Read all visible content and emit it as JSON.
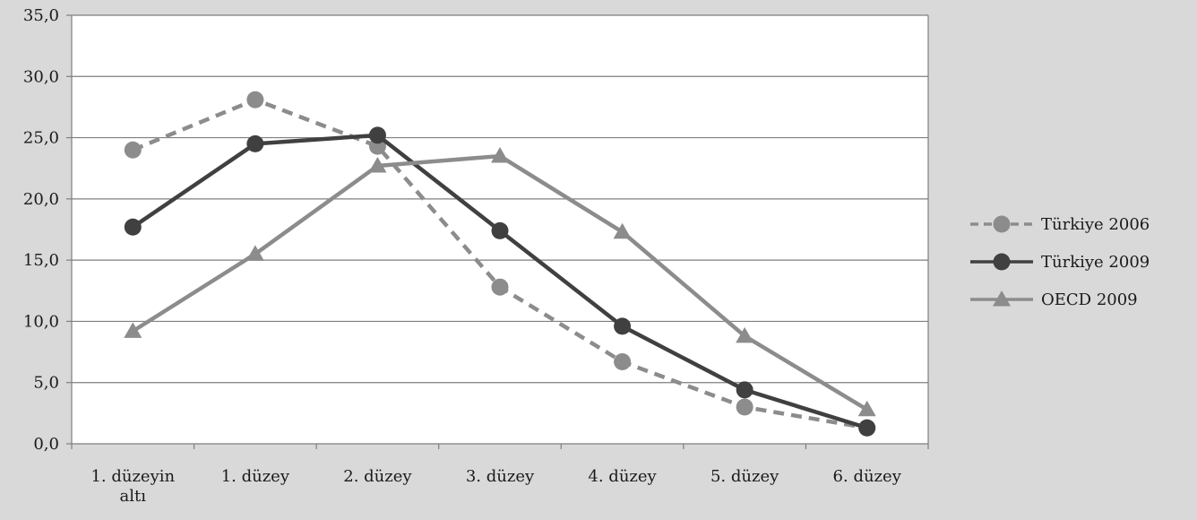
{
  "chart_data": {
    "type": "line",
    "categories": [
      [
        "1. düzeyin",
        "altı"
      ],
      [
        "1. düzey"
      ],
      [
        "2. düzey"
      ],
      [
        "3. düzey"
      ],
      [
        "4. düzey"
      ],
      [
        "5. düzey"
      ],
      [
        "6. düzey"
      ]
    ],
    "y_ticks": [
      "0,0",
      "5,0",
      "10,0",
      "15,0",
      "20,0",
      "25,0",
      "30,0",
      "35,0"
    ],
    "ylim": [
      0,
      35
    ],
    "grid": "horizontal",
    "legend_position": "right",
    "series": [
      {
        "name": "Türkiye 2006",
        "values": [
          24.0,
          28.1,
          24.3,
          12.8,
          6.7,
          3.0,
          1.3
        ],
        "color": "#8c8c8c",
        "dash": "dashed",
        "marker": "circle"
      },
      {
        "name": "Türkiye 2009",
        "values": [
          17.7,
          24.5,
          25.2,
          17.4,
          9.6,
          4.4,
          1.3
        ],
        "color": "#404040",
        "dash": "solid",
        "marker": "circle"
      },
      {
        "name": "OECD 2009",
        "values": [
          9.2,
          15.5,
          22.7,
          23.5,
          17.3,
          8.8,
          2.8
        ],
        "color": "#8c8c8c",
        "dash": "solid",
        "marker": "triangle"
      }
    ]
  }
}
